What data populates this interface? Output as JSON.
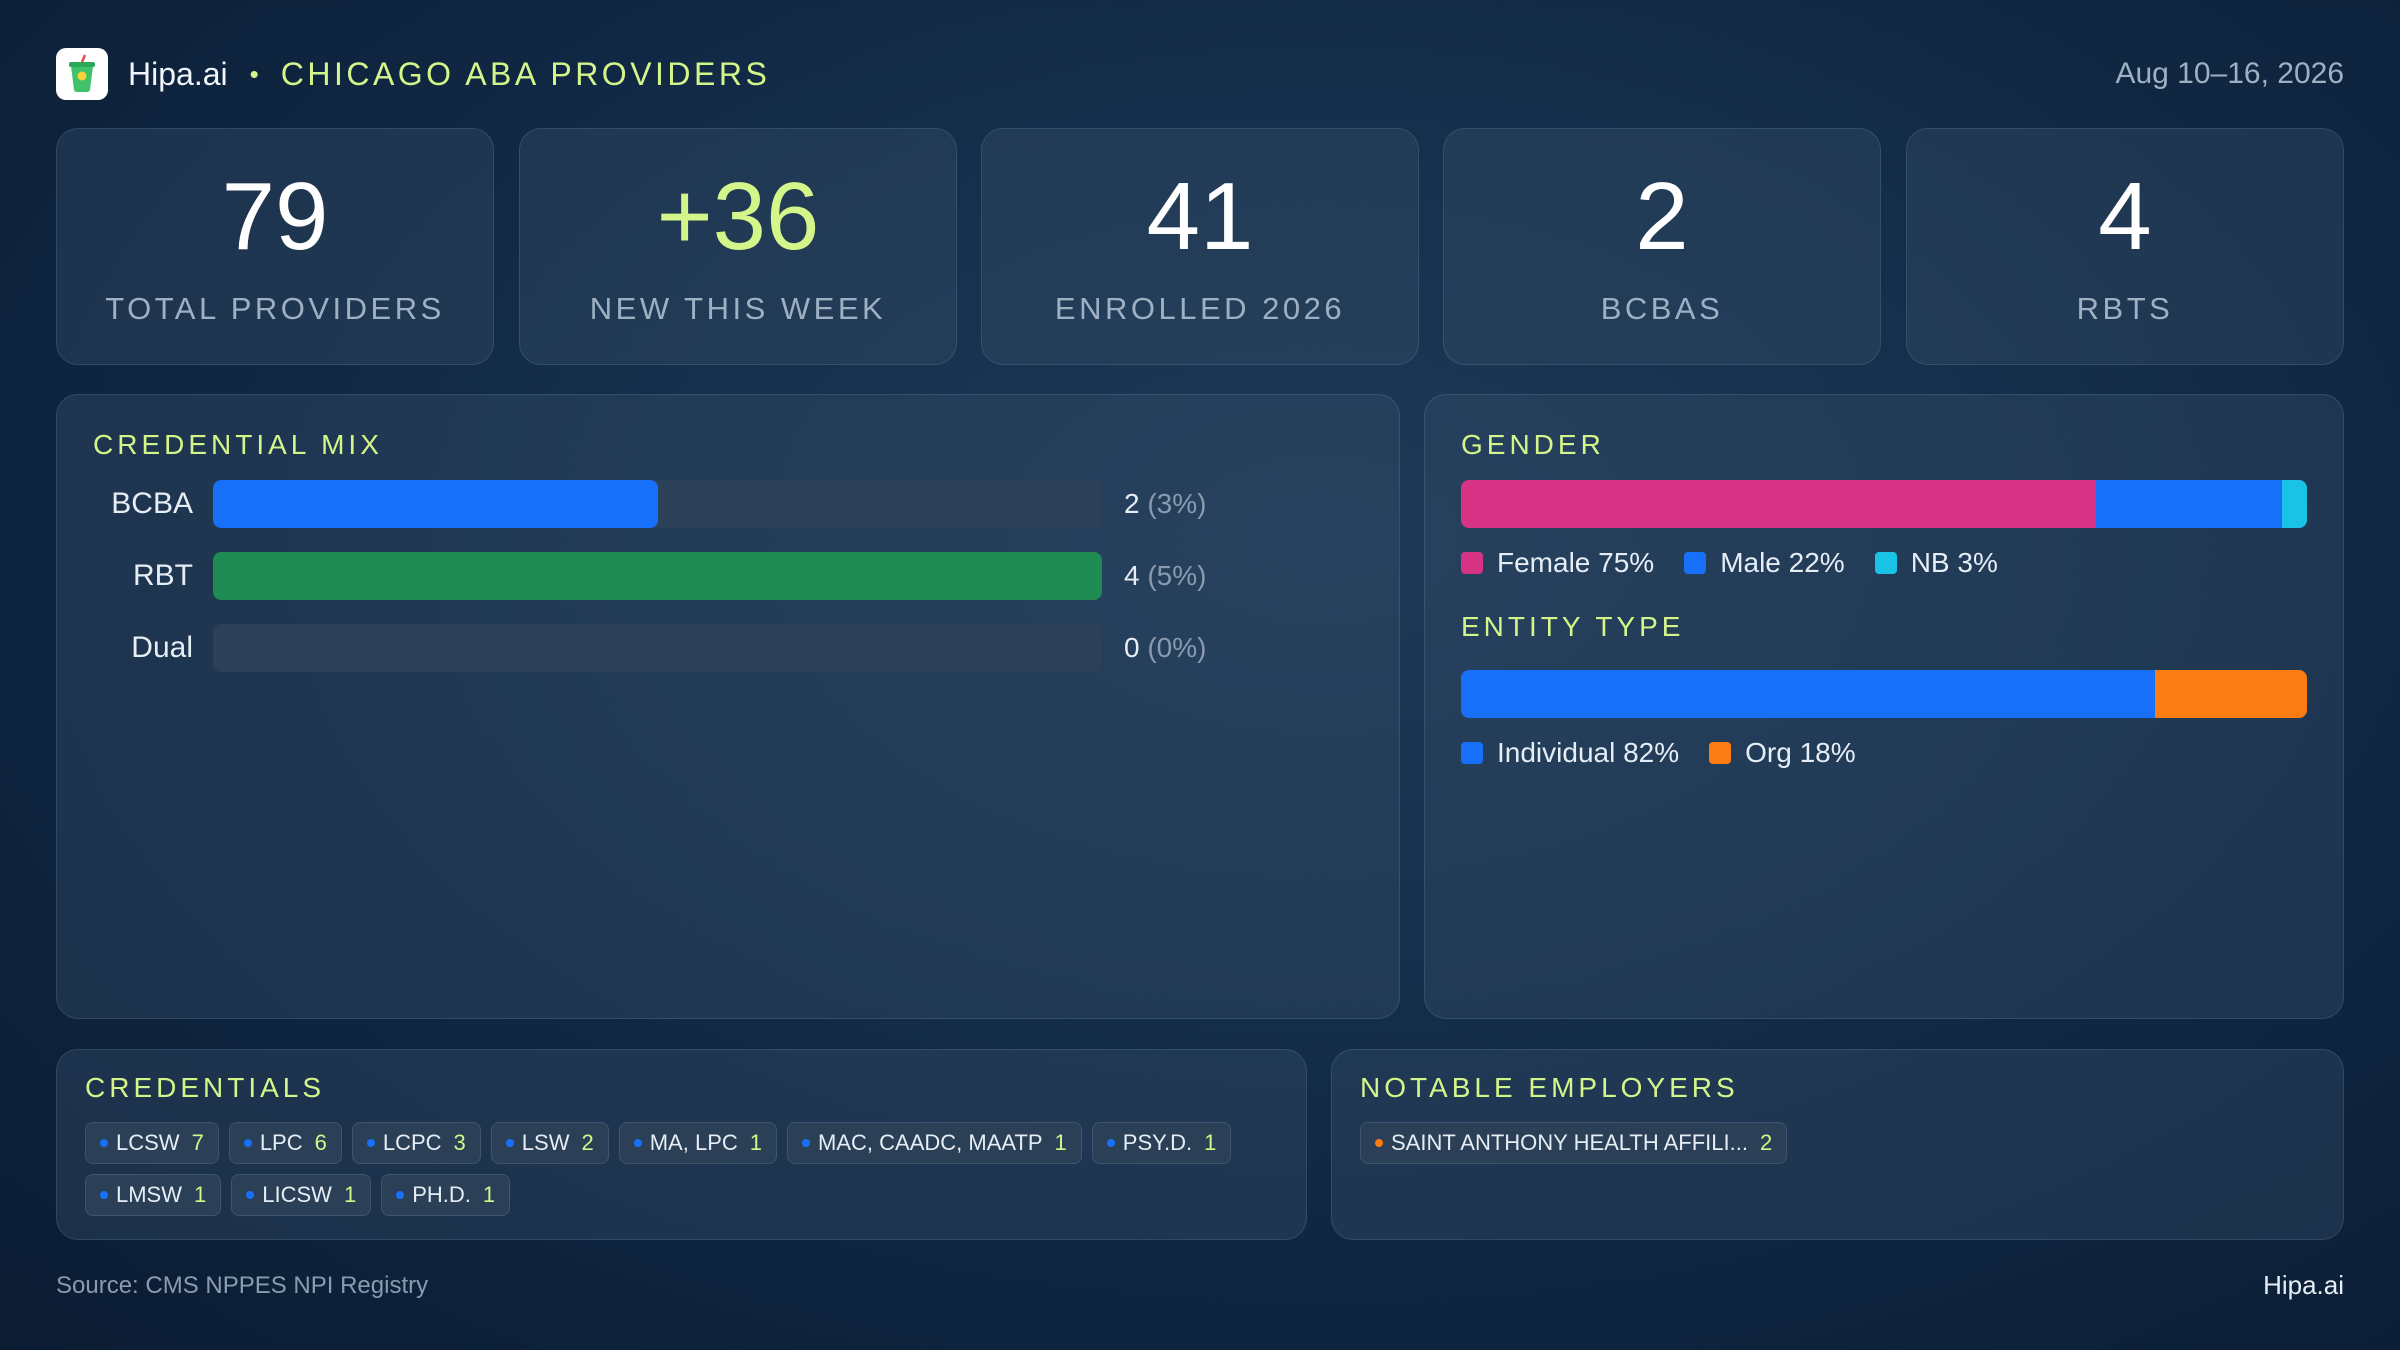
{
  "header": {
    "brand": "Hipa.ai",
    "separator": "•",
    "region": "CHICAGO ABA PROVIDERS",
    "date_range": "Aug 10–16, 2026"
  },
  "kpis": [
    {
      "value": "79",
      "label": "TOTAL  PROVIDERS",
      "accent": false
    },
    {
      "value": "+36",
      "label": "NEW THIS WEEK",
      "accent": true
    },
    {
      "value": "41",
      "label": "ENROLLED 2026",
      "accent": false
    },
    {
      "value": "2",
      "label": "BCBAS",
      "accent": false
    },
    {
      "value": "4",
      "label": "RBTS",
      "accent": false
    }
  ],
  "credential_mix": {
    "title": "CREDENTIAL  MIX",
    "rows": [
      {
        "label": "BCBA",
        "count": "2",
        "pct": "(3%)",
        "fill": 0.5,
        "color": "#1670fa"
      },
      {
        "label": "RBT",
        "count": "4",
        "pct": "(5%)",
        "fill": 1.0,
        "color": "#1e8c52"
      },
      {
        "label": "Dual",
        "count": "0",
        "pct": "(0%)",
        "fill": 0.0,
        "color": "#1670fa"
      }
    ]
  },
  "gender": {
    "title": "GENDER",
    "segments": [
      {
        "label": "Female 75%",
        "share": 75,
        "color": "#d63384"
      },
      {
        "label": "Male 22%",
        "share": 22,
        "color": "#1670fa"
      },
      {
        "label": "NB 3%",
        "share": 3,
        "color": "#19c3e6"
      }
    ]
  },
  "entity_type": {
    "title": "ENTITY TYPE",
    "segments": [
      {
        "label": "Individual 82%",
        "share": 82,
        "color": "#1670fa"
      },
      {
        "label": "Org 18%",
        "share": 18,
        "color": "#fb7c13"
      }
    ]
  },
  "credentials": {
    "title": "CREDENTIALS",
    "chips": [
      {
        "name": "LCSW",
        "count": "7"
      },
      {
        "name": "LPC",
        "count": "6"
      },
      {
        "name": "LCPC",
        "count": "3"
      },
      {
        "name": "LSW",
        "count": "2"
      },
      {
        "name": "MA, LPC",
        "count": "1"
      },
      {
        "name": "MAC, CAADC, MAATP",
        "count": "1"
      },
      {
        "name": "PSY.D.",
        "count": "1"
      },
      {
        "name": "LMSW",
        "count": "1"
      },
      {
        "name": "LICSW",
        "count": "1"
      },
      {
        "name": "PH.D.",
        "count": "1"
      }
    ],
    "dot_color": "#1670fa"
  },
  "employers": {
    "title": "NOTABLE  EMPLOYERS",
    "chips": [
      {
        "name": "SAINT ANTHONY HEALTH AFFILI...",
        "count": "2"
      }
    ],
    "dot_color": "#fb7c13"
  },
  "footer": {
    "source": "Source: CMS NPPES NPI Registry",
    "brand": "Hipa.ai"
  }
}
